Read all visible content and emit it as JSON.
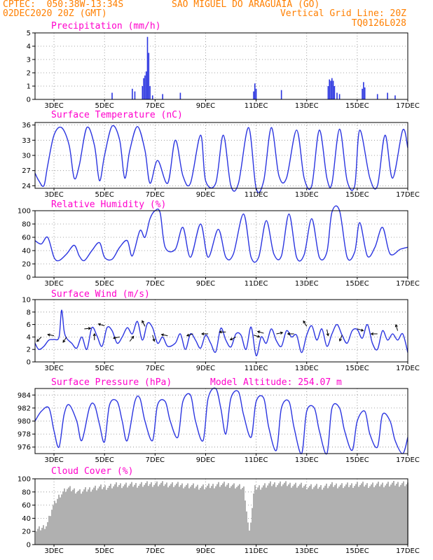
{
  "header": {
    "line1_left": "CPTEC:  050:38W-13:34S",
    "line1_right": "SAO MIGUEL DO ARAGUAIA (GO)",
    "line2_left": "02DEC2020 20Z (GMT)",
    "line2_right": "Vertical Grid Line: 20Z",
    "line3_right": "TQ0126L028"
  },
  "colors": {
    "header": "#ff7f00",
    "titles": "#ff00cc",
    "series": "#2b35e0",
    "cloud": "#b0b0b0",
    "grid": "#888888"
  },
  "x_ticks": [
    "3DEC",
    "5DEC",
    "7DEC",
    "9DEC",
    "11DEC",
    "13DEC",
    "15DEC",
    "17DEC"
  ],
  "chart_data": [
    {
      "type": "bar",
      "title": "Precipitation (mm/h)",
      "ylim": [
        0,
        5
      ],
      "yticks": [
        0,
        1,
        2,
        3,
        4,
        5
      ],
      "x_range_days": [
        2.25,
        17
      ],
      "bars": [
        [
          5.3,
          0.5
        ],
        [
          6.1,
          0.8
        ],
        [
          6.2,
          0.6
        ],
        [
          6.5,
          1.0
        ],
        [
          6.55,
          1.6
        ],
        [
          6.6,
          1.8
        ],
        [
          6.65,
          2.1
        ],
        [
          6.7,
          4.7
        ],
        [
          6.75,
          3.5
        ],
        [
          6.8,
          1.0
        ],
        [
          6.9,
          0.3
        ],
        [
          7.3,
          0.4
        ],
        [
          8.0,
          0.5
        ],
        [
          10.9,
          0.6
        ],
        [
          10.95,
          1.2
        ],
        [
          11.0,
          0.8
        ],
        [
          12.0,
          0.7
        ],
        [
          13.85,
          1.0
        ],
        [
          13.9,
          1.5
        ],
        [
          13.95,
          1.4
        ],
        [
          14.0,
          1.6
        ],
        [
          14.05,
          1.4
        ],
        [
          14.1,
          1.0
        ],
        [
          14.2,
          0.5
        ],
        [
          14.3,
          0.4
        ],
        [
          15.2,
          0.8
        ],
        [
          15.25,
          1.3
        ],
        [
          15.3,
          0.9
        ],
        [
          15.8,
          0.4
        ],
        [
          16.2,
          0.5
        ],
        [
          16.5,
          0.3
        ]
      ],
      "grid": true
    },
    {
      "type": "line",
      "title": "Surface Temperature (nC)",
      "ylim": [
        23.5,
        36.5
      ],
      "yticks": [
        24,
        27,
        30,
        33,
        36
      ],
      "series": [
        {
          "x": [
            2.25,
            2.4,
            2.6,
            2.75,
            3.0,
            3.3,
            3.6,
            3.8,
            4.0,
            4.3,
            4.6,
            4.8,
            5.0,
            5.3,
            5.6,
            5.8,
            6.0,
            6.3,
            6.6,
            6.8,
            7.1,
            7.5,
            7.8,
            8.1,
            8.4,
            8.8,
            9.0,
            9.4,
            9.7,
            10.0,
            10.3,
            10.7,
            11.0,
            11.3,
            11.6,
            11.9,
            12.2,
            12.6,
            12.9,
            13.2,
            13.5,
            13.8,
            14.0,
            14.3,
            14.6,
            14.9,
            15.1,
            15.5,
            15.8,
            16.1,
            16.4,
            16.8,
            17.0
          ],
          "y": [
            26.5,
            25,
            24,
            28,
            34,
            35.5,
            32,
            25.5,
            28,
            35.5,
            32,
            25,
            30,
            35.8,
            33,
            25.5,
            31,
            35.7,
            31,
            24.5,
            29,
            24.5,
            33,
            26,
            24.5,
            34,
            25,
            24.5,
            34,
            24,
            24.5,
            35.5,
            23.5,
            25,
            35.5,
            26,
            25.5,
            35,
            25.5,
            24,
            35,
            25.5,
            24.5,
            35.2,
            25,
            24,
            35,
            25.5,
            24,
            34,
            25.5,
            35,
            31.5
          ]
        }
      ],
      "grid": true
    },
    {
      "type": "line",
      "title": "Relative Humidity (%)",
      "ylim": [
        0,
        100
      ],
      "yticks": [
        0,
        20,
        40,
        60,
        80,
        100
      ],
      "series": [
        {
          "x": [
            2.25,
            2.5,
            2.75,
            3.0,
            3.2,
            3.5,
            3.8,
            4.0,
            4.2,
            4.5,
            4.8,
            5.0,
            5.3,
            5.6,
            5.9,
            6.1,
            6.4,
            6.6,
            6.8,
            7.0,
            7.2,
            7.4,
            7.8,
            8.1,
            8.4,
            8.8,
            9.1,
            9.5,
            9.8,
            10.1,
            10.5,
            10.8,
            11.1,
            11.4,
            11.7,
            12.0,
            12.3,
            12.6,
            12.9,
            13.2,
            13.5,
            13.8,
            14.0,
            14.3,
            14.6,
            14.9,
            15.1,
            15.4,
            15.7,
            16.0,
            16.3,
            16.7,
            17.0
          ],
          "y": [
            55,
            50,
            60,
            30,
            25,
            35,
            48,
            32,
            25,
            40,
            52,
            30,
            27,
            45,
            55,
            32,
            70,
            60,
            88,
            100,
            97,
            45,
            42,
            75,
            30,
            80,
            30,
            72,
            30,
            35,
            95,
            30,
            30,
            85,
            35,
            32,
            95,
            30,
            34,
            88,
            30,
            38,
            98,
            100,
            30,
            38,
            82,
            32,
            45,
            75,
            35,
            42,
            45
          ]
        }
      ],
      "grid": true
    },
    {
      "type": "line",
      "title": "Surface Wind (m/s)",
      "ylim": [
        0,
        10
      ],
      "yticks": [
        0,
        2,
        4,
        6,
        8,
        10
      ],
      "series": [
        {
          "x": [
            2.25,
            2.4,
            2.6,
            2.8,
            3.0,
            3.2,
            3.3,
            3.4,
            3.5,
            3.7,
            3.9,
            4.1,
            4.3,
            4.5,
            4.7,
            4.9,
            5.1,
            5.3,
            5.5,
            5.7,
            5.9,
            6.1,
            6.3,
            6.5,
            6.7,
            6.9,
            7.1,
            7.3,
            7.5,
            7.8,
            8.0,
            8.2,
            8.4,
            8.6,
            8.8,
            9.0,
            9.2,
            9.4,
            9.6,
            9.8,
            10.0,
            10.2,
            10.4,
            10.6,
            10.8,
            11.0,
            11.2,
            11.4,
            11.6,
            11.8,
            12.0,
            12.2,
            12.4,
            12.6,
            12.8,
            13.0,
            13.2,
            13.4,
            13.6,
            13.8,
            14.0,
            14.2,
            14.4,
            14.6,
            14.8,
            15.0,
            15.2,
            15.4,
            15.6,
            15.8,
            16.0,
            16.2,
            16.4,
            16.6,
            16.8,
            17.0
          ],
          "y": [
            3,
            2,
            2.5,
            3.5,
            3.6,
            4,
            8.3,
            5,
            3.8,
            3,
            2.2,
            4,
            2,
            5.5,
            4.2,
            2.5,
            5.5,
            5,
            3,
            4,
            5.5,
            4.5,
            6.5,
            3.5,
            6.2,
            5.5,
            3,
            4,
            2.5,
            3,
            4.5,
            2,
            4.5,
            3.5,
            2.2,
            4.3,
            3,
            1.6,
            5.4,
            3.5,
            2.4,
            4.5,
            4.3,
            2,
            5.6,
            1,
            4,
            3,
            5.3,
            3.4,
            2.5,
            5,
            4,
            4.3,
            1.5,
            4.3,
            5.8,
            3.5,
            5.3,
            2.5,
            4.5,
            6,
            4.3,
            3,
            5,
            5.2,
            3.8,
            6,
            3,
            2,
            5,
            3.5,
            4.5,
            3.5,
            4.5,
            1.5
          ]
        }
      ],
      "arrows": [
        [
          2.5,
          4.0,
          -1,
          -1
        ],
        [
          3.0,
          4.2,
          -1,
          0.2
        ],
        [
          3.5,
          4.0,
          -0.6,
          -0.9
        ],
        [
          4.2,
          5.3,
          1,
          0.1
        ],
        [
          4.6,
          3.5,
          0,
          1
        ],
        [
          5.0,
          5.8,
          -1,
          0.3
        ],
        [
          5.6,
          4.0,
          -1,
          -0.2
        ],
        [
          6.0,
          3.3,
          0.6,
          0.8
        ],
        [
          6.6,
          5.7,
          -0.5,
          1
        ],
        [
          6.9,
          4.3,
          0.3,
          -1
        ],
        [
          7.5,
          4.2,
          -1,
          0.2
        ],
        [
          8.5,
          4.5,
          -1,
          -0.3
        ],
        [
          9.1,
          4.5,
          -1,
          0
        ],
        [
          9.8,
          4.8,
          -1,
          0
        ],
        [
          10.2,
          4.0,
          -1,
          -0.5
        ],
        [
          10.9,
          4.3,
          1,
          -0.3
        ],
        [
          11.3,
          4.6,
          -1,
          0.3
        ],
        [
          11.8,
          4.5,
          1,
          0.2
        ],
        [
          12.5,
          4.5,
          -1,
          0
        ],
        [
          13.0,
          5.7,
          -0.6,
          1
        ],
        [
          13.8,
          5.2,
          0.2,
          -1
        ],
        [
          14.4,
          4.3,
          -0.4,
          -1
        ],
        [
          15.0,
          5.3,
          1,
          -0.3
        ],
        [
          15.8,
          4.5,
          -1,
          0
        ],
        [
          16.6,
          5.0,
          -0.3,
          1
        ]
      ],
      "grid": true
    },
    {
      "type": "line",
      "title": "Surface Pressure (hPa)",
      "annotation": "Model Altitude: 254.07 m",
      "ylim": [
        975,
        985
      ],
      "yticks": [
        976,
        978,
        980,
        982,
        984
      ],
      "series": [
        {
          "x": [
            2.25,
            2.5,
            2.8,
            3.0,
            3.2,
            3.4,
            3.6,
            3.9,
            4.1,
            4.4,
            4.6,
            4.8,
            5.0,
            5.2,
            5.5,
            5.7,
            5.9,
            6.2,
            6.4,
            6.6,
            6.9,
            7.1,
            7.4,
            7.6,
            7.9,
            8.1,
            8.4,
            8.6,
            8.9,
            9.1,
            9.4,
            9.6,
            9.8,
            10.0,
            10.3,
            10.5,
            10.8,
            11.0,
            11.3,
            11.5,
            11.8,
            12.0,
            12.3,
            12.5,
            12.8,
            13.0,
            13.3,
            13.5,
            13.8,
            14.0,
            14.3,
            14.5,
            14.8,
            15.0,
            15.3,
            15.5,
            15.8,
            16.0,
            16.3,
            16.5,
            16.8,
            17.0
          ],
          "y": [
            980,
            981.5,
            982,
            978.5,
            976,
            981,
            982.5,
            980,
            977,
            982,
            982.5,
            979.5,
            976.8,
            982.5,
            983,
            980,
            977,
            983,
            983.5,
            980,
            977,
            982.5,
            983,
            980,
            977.5,
            983,
            984,
            980,
            977,
            983.5,
            985,
            982,
            978,
            983.5,
            984.5,
            981,
            977.5,
            983,
            983.5,
            979,
            975.5,
            982,
            983,
            979,
            975,
            981.5,
            982,
            978.5,
            975,
            982,
            982,
            978.5,
            975.5,
            980,
            981.5,
            978,
            976,
            981,
            980,
            977,
            975,
            977.5
          ]
        }
      ],
      "grid": true
    },
    {
      "type": "bar",
      "title": "Cloud Cover (%)",
      "ylim": [
        0,
        100
      ],
      "yticks": [
        0,
        20,
        40,
        60,
        80,
        100
      ],
      "profile": [
        [
          2.25,
          25
        ],
        [
          2.5,
          30
        ],
        [
          2.7,
          35
        ],
        [
          2.9,
          60
        ],
        [
          3.2,
          80
        ],
        [
          3.5,
          90
        ],
        [
          4.0,
          85
        ],
        [
          4.5,
          90
        ],
        [
          5.0,
          92
        ],
        [
          5.5,
          95
        ],
        [
          6.0,
          95
        ],
        [
          6.5,
          96
        ],
        [
          7.0,
          97
        ],
        [
          7.5,
          96
        ],
        [
          8.0,
          95
        ],
        [
          8.5,
          93
        ],
        [
          9.0,
          92
        ],
        [
          9.5,
          96
        ],
        [
          10.0,
          95
        ],
        [
          10.5,
          90
        ],
        [
          10.7,
          20
        ],
        [
          10.9,
          90
        ],
        [
          11.5,
          96
        ],
        [
          12.0,
          97
        ],
        [
          12.5,
          95
        ],
        [
          13.0,
          93
        ],
        [
          13.5,
          92
        ],
        [
          14.0,
          95
        ],
        [
          14.5,
          94
        ],
        [
          15.0,
          96
        ],
        [
          15.5,
          95
        ],
        [
          16.0,
          96
        ],
        [
          16.5,
          97
        ],
        [
          17.0,
          97
        ]
      ],
      "grid": true
    }
  ]
}
